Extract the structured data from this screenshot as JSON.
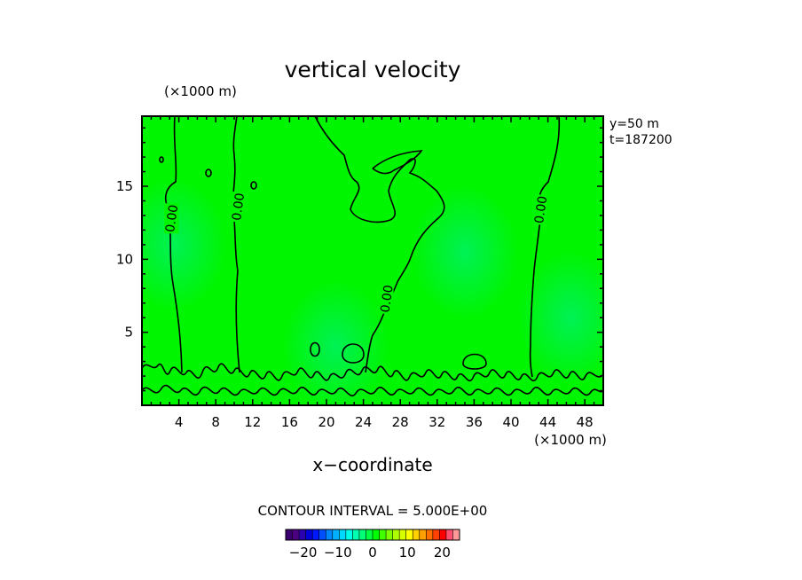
{
  "chart_data": {
    "type": "heatmap",
    "title": "vertical velocity",
    "xlabel": "x−coordinate",
    "x_unit": "(×1000 m)",
    "y_unit": "(×1000 m)",
    "annotations": [
      "y=50  m",
      "t=187200"
    ],
    "xlim": [
      0,
      50
    ],
    "ylim": [
      0,
      19.8
    ],
    "x_ticks": [
      4,
      8,
      12,
      16,
      20,
      24,
      28,
      32,
      36,
      40,
      44,
      48
    ],
    "y_ticks": [
      5,
      10,
      15
    ],
    "contour_interval_text": "CONTOUR INTERVAL = 5.000E+00",
    "contour_label": "0.00",
    "contour_label_positions": [
      [
        3.2,
        12.8
      ],
      [
        10.4,
        13.6
      ],
      [
        26.5,
        7.3
      ],
      [
        43.2,
        13.4
      ]
    ],
    "field_value_range": [
      -5,
      5
    ],
    "colorbar": {
      "range": [
        -25,
        25
      ],
      "tick_values": [
        -20,
        -10,
        0,
        10,
        20
      ],
      "tick_labels": [
        "−20",
        "−10",
        "0",
        "10",
        "20"
      ],
      "colors": [
        "#3a0070",
        "#4b0082",
        "#2a00b0",
        "#0000d8",
        "#0018ff",
        "#0050ff",
        "#0088ff",
        "#00b0ff",
        "#00d8ff",
        "#00ffe8",
        "#00ffb0",
        "#00ff78",
        "#00ff40",
        "#00ff00",
        "#40ff00",
        "#80ff00",
        "#b0ff00",
        "#d8ff00",
        "#ffff00",
        "#ffd000",
        "#ffa000",
        "#ff7000",
        "#ff4000",
        "#ff0000",
        "#ff5070",
        "#ff9898"
      ]
    },
    "field_background_color": "#00f500",
    "light_patches": [
      [
        3.4,
        11.0
      ],
      [
        35.0,
        10.5
      ],
      [
        21.0,
        4.0
      ],
      [
        46.5,
        6.0
      ]
    ]
  }
}
